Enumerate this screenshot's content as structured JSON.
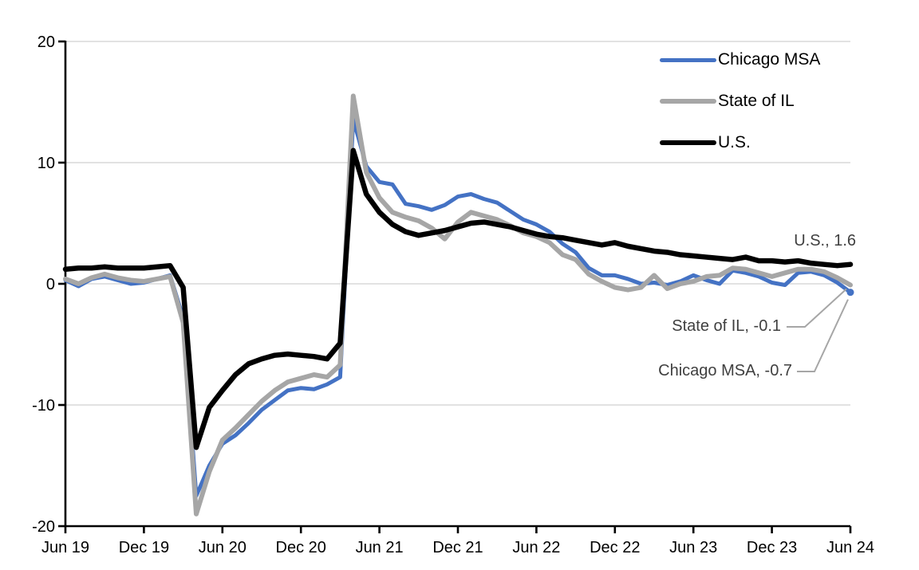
{
  "chart_data": {
    "type": "line",
    "title": "",
    "xlabel": "",
    "ylabel": "",
    "ylim": [
      -20,
      20
    ],
    "yticks": [
      -20,
      -10,
      0,
      10,
      20
    ],
    "grid_yticks": [
      -10,
      0,
      10,
      20
    ],
    "grid": true,
    "legend_position": "top-right-inside",
    "x_tick_labels": [
      "Jun 19",
      "Dec 19",
      "Jun 20",
      "Dec 20",
      "Jun 21",
      "Dec 21",
      "Jun 22",
      "Dec 22",
      "Jun 23",
      "Dec 23",
      "Jun 24"
    ],
    "months": [
      "2019-06",
      "2019-07",
      "2019-08",
      "2019-09",
      "2019-10",
      "2019-11",
      "2019-12",
      "2020-01",
      "2020-02",
      "2020-03",
      "2020-04",
      "2020-05",
      "2020-06",
      "2020-07",
      "2020-08",
      "2020-09",
      "2020-10",
      "2020-11",
      "2020-12",
      "2021-01",
      "2021-02",
      "2021-03",
      "2021-04",
      "2021-05",
      "2021-06",
      "2021-07",
      "2021-08",
      "2021-09",
      "2021-10",
      "2021-11",
      "2021-12",
      "2022-01",
      "2022-02",
      "2022-03",
      "2022-04",
      "2022-05",
      "2022-06",
      "2022-07",
      "2022-08",
      "2022-09",
      "2022-10",
      "2022-11",
      "2022-12",
      "2023-01",
      "2023-02",
      "2023-03",
      "2023-04",
      "2023-05",
      "2023-06",
      "2023-07",
      "2023-08",
      "2023-09",
      "2023-10",
      "2023-11",
      "2023-12",
      "2024-01",
      "2024-02",
      "2024-03",
      "2024-04",
      "2024-05",
      "2024-06"
    ],
    "series": [
      {
        "id": "chicago-msa",
        "name": "Chicago MSA",
        "color": "#4472c4",
        "end_label": "Chicago MSA, -0.7",
        "end_value": -0.7,
        "values": [
          0.3,
          -0.2,
          0.4,
          0.6,
          0.3,
          0.0,
          0.1,
          0.4,
          0.7,
          -2.8,
          -17.5,
          -15.0,
          -13.2,
          -12.5,
          -11.5,
          -10.4,
          -9.6,
          -8.8,
          -8.6,
          -8.7,
          -8.3,
          -7.7,
          13.6,
          9.7,
          8.4,
          8.2,
          6.6,
          6.4,
          6.1,
          6.5,
          7.2,
          7.4,
          7.0,
          6.7,
          6.0,
          5.3,
          4.9,
          4.3,
          3.3,
          2.6,
          1.3,
          0.7,
          0.7,
          0.4,
          0.0,
          0.1,
          -0.1,
          0.2,
          0.7,
          0.3,
          0.0,
          1.1,
          0.9,
          0.6,
          0.1,
          -0.1,
          0.9,
          1.0,
          0.7,
          0.1,
          -0.7
        ]
      },
      {
        "id": "state-of-il",
        "name": "State of IL",
        "color": "#a6a6a6",
        "end_label": "State of IL, -0.1",
        "end_value": -0.1,
        "values": [
          0.4,
          0.0,
          0.5,
          0.8,
          0.5,
          0.3,
          0.2,
          0.4,
          0.6,
          -3.2,
          -19.0,
          -15.5,
          -12.9,
          -11.9,
          -10.8,
          -9.7,
          -8.8,
          -8.1,
          -7.8,
          -7.5,
          -7.7,
          -6.7,
          15.5,
          9.2,
          7.1,
          5.9,
          5.5,
          5.2,
          4.6,
          3.7,
          5.1,
          5.9,
          5.6,
          5.3,
          4.8,
          4.2,
          3.9,
          3.4,
          2.4,
          2.0,
          0.8,
          0.2,
          -0.3,
          -0.5,
          -0.3,
          0.7,
          -0.4,
          0.0,
          0.2,
          0.6,
          0.7,
          1.3,
          1.2,
          0.9,
          0.6,
          0.9,
          1.2,
          1.2,
          1.0,
          0.5,
          -0.1
        ]
      },
      {
        "id": "us",
        "name": "U.S.",
        "color": "#000000",
        "end_label": "U.S., 1.6",
        "end_value": 1.6,
        "values": [
          1.2,
          1.3,
          1.3,
          1.4,
          1.3,
          1.3,
          1.3,
          1.4,
          1.5,
          -0.3,
          -13.5,
          -10.2,
          -8.8,
          -7.5,
          -6.6,
          -6.2,
          -5.9,
          -5.8,
          -5.9,
          -6.0,
          -6.2,
          -4.9,
          11.0,
          7.4,
          5.9,
          4.9,
          4.3,
          4.0,
          4.2,
          4.4,
          4.7,
          5.0,
          5.1,
          4.9,
          4.7,
          4.4,
          4.1,
          3.9,
          3.8,
          3.6,
          3.4,
          3.2,
          3.4,
          3.1,
          2.9,
          2.7,
          2.6,
          2.4,
          2.3,
          2.2,
          2.1,
          2.0,
          2.2,
          1.9,
          1.9,
          1.8,
          1.9,
          1.7,
          1.6,
          1.5,
          1.6
        ]
      }
    ],
    "style": {
      "grid_color": "#d9d9d9",
      "axis_color": "#000000",
      "leader_color": "#a6a6a6",
      "annotation_text_color": "#3f3f3f"
    }
  }
}
